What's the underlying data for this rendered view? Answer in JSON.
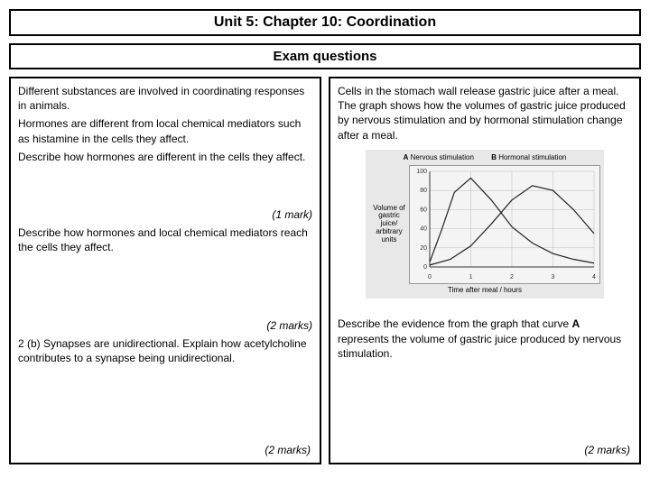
{
  "page_title": "Unit 5: Chapter 10: Coordination",
  "page_subtitle": "Exam questions",
  "left": {
    "q1_intro": "Different substances are involved in coordinating responses in animals.",
    "q1_line2": "Hormones are different from local chemical mediators such as histamine in the cells they affect.",
    "q1_line3": "Describe how hormones are different in the cells they affect.",
    "mark1": "(1 mark)",
    "q1b": "Describe how hormones and local chemical mediators reach the cells they affect.",
    "mark2": "(2 marks)",
    "q2": "2 (b) Synapses are unidirectional. Explain how acetylcholine contributes to a synapse being unidirectional.",
    "mark3": "(2 marks)"
  },
  "right": {
    "q_intro": "Cells in the stomach wall release gastric juice after a meal. The graph shows how the volumes of gastric juice produced by nervous stimulation and by hormonal stimulation change after a meal.",
    "q_follow_a": "Describe the evidence from the graph that curve ",
    "q_follow_bold": "A",
    "q_follow_b": " represents the volume of gastric juice produced by nervous stimulation.",
    "mark": "(2 marks)"
  },
  "chart": {
    "type": "line",
    "title_a": "A",
    "title_b": "B",
    "subtitle_a": "Nervous stimulation",
    "subtitle_b": "Hormonal stimulation",
    "ylabel": "Volume of gastric juice/ arbitrary units",
    "xlabel": "Time after meal / hours",
    "xlim": [
      0,
      4
    ],
    "ylim": [
      0,
      100
    ],
    "xtick_step": 1,
    "ytick_step": 20,
    "background_color": "#e8e8e8",
    "plot_bg": "#f4f4f4",
    "grid_color": "#bbbbbb",
    "axis_color": "#333333",
    "line_color": "#222222",
    "line_width": 1.2,
    "series_a": {
      "x": [
        0,
        0.3,
        0.6,
        1.0,
        1.5,
        2.0,
        2.5,
        3.0,
        3.5,
        4.0
      ],
      "y": [
        5,
        40,
        78,
        93,
        70,
        42,
        25,
        14,
        8,
        4
      ]
    },
    "series_b": {
      "x": [
        0,
        0.5,
        1.0,
        1.5,
        2.0,
        2.5,
        3.0,
        3.5,
        4.0
      ],
      "y": [
        2,
        8,
        22,
        45,
        70,
        85,
        80,
        60,
        35
      ]
    }
  }
}
